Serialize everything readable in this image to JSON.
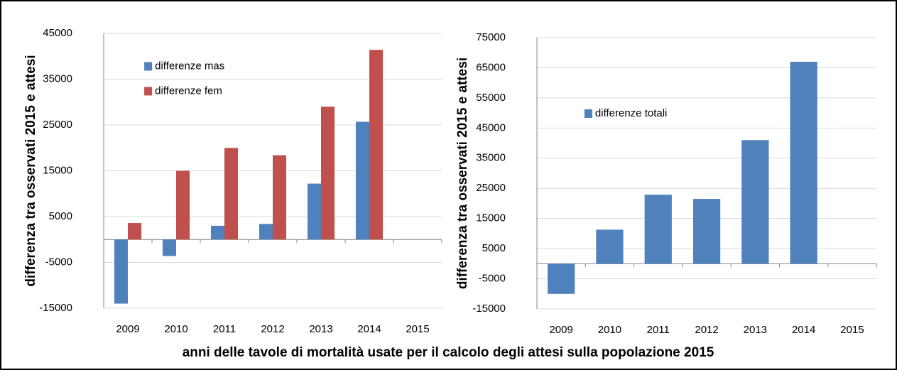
{
  "xlabel": "anni delle tavole di mortalità usate per il calcolo degli attesi sulla popolazione 2015",
  "chart_data": [
    {
      "type": "bar",
      "ylabel": "differenza tra osservati 2015 e attesi",
      "categories": [
        "2009",
        "2010",
        "2011",
        "2012",
        "2013",
        "2014",
        "2015"
      ],
      "series": [
        {
          "name": "differenze mas",
          "color": "#4f81bd",
          "values": [
            -14000,
            -3600,
            3000,
            3400,
            12200,
            25700,
            null
          ]
        },
        {
          "name": "differenze fem",
          "color": "#c0504d",
          "values": [
            3600,
            15000,
            20000,
            18400,
            29000,
            41400,
            null
          ]
        }
      ],
      "ylim": [
        -15000,
        45000
      ],
      "yticks": [
        -15000,
        -5000,
        5000,
        15000,
        25000,
        35000,
        45000
      ],
      "grid": true,
      "legend": "upper left"
    },
    {
      "type": "bar",
      "ylabel": "differenza tra osservati 2015 e attesi",
      "categories": [
        "2009",
        "2010",
        "2011",
        "2012",
        "2013",
        "2014",
        "2015"
      ],
      "series": [
        {
          "name": "differenze totali",
          "color": "#4f81bd",
          "values": [
            -10000,
            11300,
            22900,
            21500,
            41000,
            67000,
            null
          ]
        }
      ],
      "ylim": [
        -15000,
        75000
      ],
      "yticks": [
        -15000,
        -5000,
        5000,
        15000,
        25000,
        35000,
        45000,
        55000,
        65000,
        75000
      ],
      "grid": true,
      "legend": "center left"
    }
  ]
}
